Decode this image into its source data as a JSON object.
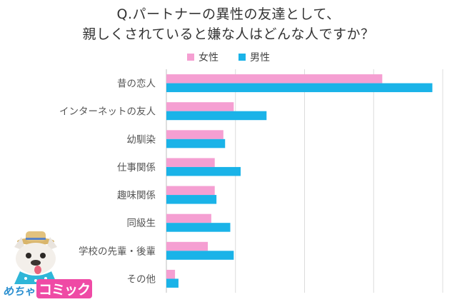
{
  "chart_data": {
    "type": "bar",
    "orientation": "horizontal",
    "title_lines": [
      "Q.パートナーの異性の友達として、",
      "親しくされていると嫌な人はどんな人ですか？"
    ],
    "categories": [
      "昔の恋人",
      "インターネットの友人",
      "幼馴染",
      "仕事関係",
      "趣味関係",
      "同級生",
      "学校の先輩・後輩",
      "その他"
    ],
    "series": [
      {
        "name": "女性",
        "color": "#f59fd2",
        "values": [
          62.5,
          19.5,
          16.5,
          14.0,
          14.0,
          13.0,
          12.0,
          2.5
        ]
      },
      {
        "name": "男性",
        "color": "#1ab3e8",
        "values": [
          77.0,
          29.0,
          17.0,
          21.5,
          14.5,
          18.5,
          19.5,
          3.5
        ]
      }
    ],
    "xlim": [
      0,
      80
    ],
    "grid": true,
    "legend_position": "top-center"
  },
  "branding": {
    "logo_left": "めちゃ",
    "logo_right": "コミック",
    "mascot": "french-bulldog-with-straw-hat"
  }
}
